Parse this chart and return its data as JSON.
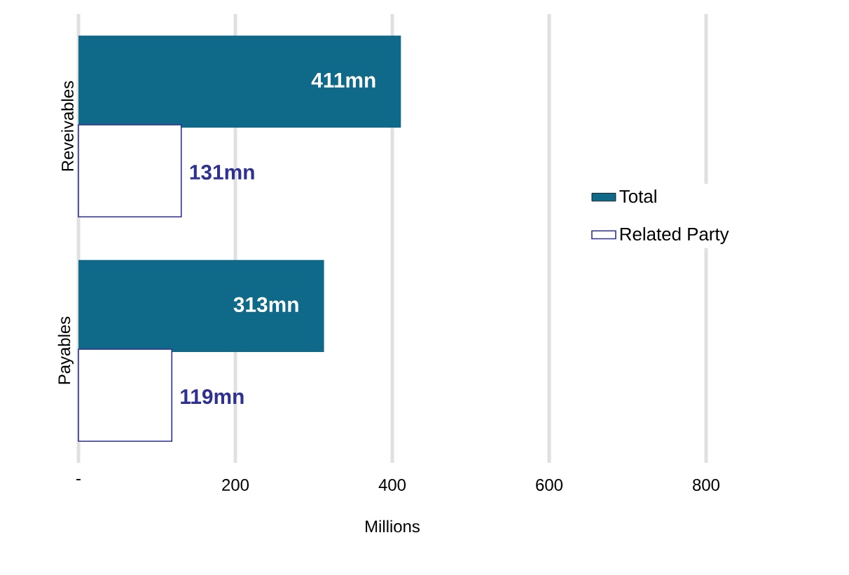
{
  "chart_data": {
    "type": "bar",
    "orientation": "horizontal",
    "xlabel": "Millions",
    "categories": [
      "Reveivables",
      "Payables"
    ],
    "series": [
      {
        "name": "Total",
        "color": "#0f6a8a",
        "values": [
          411,
          313
        ],
        "value_labels": [
          "411mn",
          "313mn"
        ]
      },
      {
        "name": "Related Party",
        "color": "#2e3192",
        "values": [
          131,
          119
        ],
        "value_labels": [
          "131mn",
          "119mn"
        ]
      }
    ],
    "xlim": [
      0,
      800
    ],
    "xticks": [
      {
        "value": 0,
        "label": "-"
      },
      200,
      400,
      600,
      800
    ],
    "grid": "x",
    "legend": "right"
  }
}
